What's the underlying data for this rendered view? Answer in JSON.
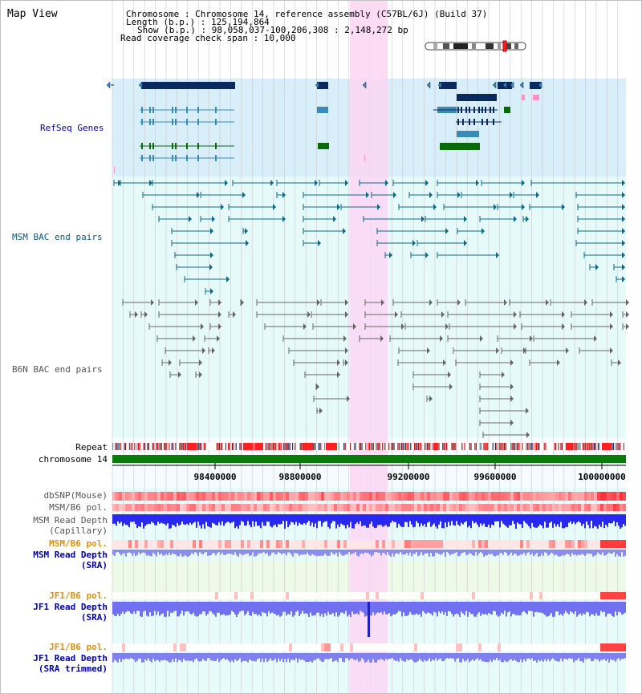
{
  "panel_title": "Map View",
  "header": {
    "lines": [
      "Chromosome      : Chromosome 14, reference assembly (C57BL/6J) (Build 37)",
      "Length (b.p.) : 125,194,864",
      "Show (b.p.) : 98,058,037-100,206,308 : 2,148,272 bp",
      "Read coverage check span : 10,000"
    ]
  },
  "tracks": {
    "refseq": "RefSeq Genes",
    "msm_bac": "MSM BAC end pairs",
    "b6n_bac": "B6N BAC end pairs",
    "repeat": "Repeat",
    "chromosome": "chromosome 14",
    "dbsnp": "dbSNP(Mouse)",
    "msm_b6_pol_1": "MSM/B6 pol.",
    "msm_depth_cap_1": "MSM Read Depth",
    "msm_depth_cap_2": "(Capillary)",
    "msm_b6_pol_2": "MSM/B6 pol.",
    "msm_depth_sra_1": "MSM Read Depth",
    "msm_depth_sra_2": "(SRA)",
    "jf1_b6_pol_1": "JF1/B6 pol.",
    "jf1_depth_sra_1": "JF1 Read Depth",
    "jf1_depth_sra_2": "(SRA)",
    "jf1_b6_pol_2": "JF1/B6 pol.",
    "jf1_depth_trim_1": "JF1 Read Depth",
    "jf1_depth_trim_2": "(SRA trimmed)"
  },
  "axis": {
    "ticks": [
      "98400000",
      "98800000",
      "99200000",
      "99600000",
      "100000000"
    ]
  },
  "colors": {
    "refseq_bg": "#d8eef8",
    "bac_bg": "#e6fafa",
    "highlight": "#fbd6f3",
    "gene_dark": "#0a2a5e",
    "gene_mid": "#3a8ab8",
    "gene_green": "#0a6a0a",
    "msm_pair": "#0e6a86",
    "b6n_pair": "#666666",
    "chromosome_bar": "#0a7a0a",
    "repeat_red": "#e01818",
    "depth_blue": "#2828f0",
    "depth_light": "#8c8cf0",
    "label_blue": "#0000b0",
    "label_orange": "#e09010"
  }
}
